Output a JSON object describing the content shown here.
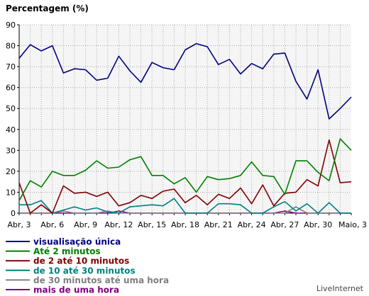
{
  "chart_data": {
    "type": "line",
    "title": "Percentagem (%)",
    "xlabel": "",
    "ylabel": "",
    "ylim": [
      0,
      90
    ],
    "yticks": [
      0,
      10,
      20,
      30,
      40,
      50,
      60,
      70,
      80,
      90
    ],
    "grid": true,
    "legend_position": "bottom-left",
    "watermark": "LiveInternet",
    "x_tick_labels": [
      "Abr, 3",
      "Abr, 6",
      "Abr, 9",
      "Abr, 12",
      "Abr, 15",
      "Abr, 18",
      "Abr, 21",
      "Abr, 24",
      "Abr, 27",
      "Abr, 30",
      "Maio, 3"
    ],
    "x": [
      "Abr, 3",
      "Abr, 4",
      "Abr, 5",
      "Abr, 6",
      "Abr, 7",
      "Abr, 8",
      "Abr, 9",
      "Abr, 10",
      "Abr, 11",
      "Abr, 12",
      "Abr, 13",
      "Abr, 14",
      "Abr, 15",
      "Abr, 16",
      "Abr, 17",
      "Abr, 18",
      "Abr, 19",
      "Abr, 20",
      "Abr, 21",
      "Abr, 22",
      "Abr, 23",
      "Abr, 24",
      "Abr, 25",
      "Abr, 26",
      "Abr, 27",
      "Abr, 28",
      "Abr, 29",
      "Abr, 30",
      "Maio, 1",
      "Maio, 2",
      "Maio, 3"
    ],
    "series": [
      {
        "name": "visualisação única",
        "color": "#000080",
        "values": [
          74,
          80.5,
          77.5,
          80,
          67,
          69,
          68.5,
          63.5,
          64.5,
          75,
          68,
          62.5,
          72,
          69.5,
          68.5,
          78,
          81,
          79.5,
          71,
          73.5,
          66.5,
          71.5,
          69,
          76,
          76.5,
          63,
          54.5,
          68.5,
          45,
          50,
          55.5
        ]
      },
      {
        "name": "Até 2 minutos",
        "color": "#008000",
        "values": [
          6,
          15.5,
          12.5,
          20,
          18,
          18,
          20.5,
          25,
          21.5,
          22,
          25.5,
          27,
          18,
          18,
          14,
          17,
          10,
          17.5,
          16,
          16.5,
          18,
          24.5,
          18,
          17.5,
          9,
          25,
          25,
          19.5,
          15.5,
          35.5,
          30
        ]
      },
      {
        "name": "de 2 até 10 minutos",
        "color": "#800000",
        "values": [
          14.5,
          0,
          4,
          0,
          13,
          9.5,
          10,
          8,
          10,
          3.5,
          5,
          8.5,
          7,
          10.5,
          11.5,
          5,
          8.5,
          4,
          9,
          7,
          12,
          4.5,
          13.5,
          3.5,
          9.5,
          10,
          16,
          13,
          35,
          14.5,
          15
        ]
      },
      {
        "name": "de 10 até 30 minutos",
        "color": "#008080",
        "values": [
          4,
          4,
          6,
          0,
          1.5,
          3,
          1.5,
          2.5,
          0.5,
          0,
          3,
          3.5,
          4,
          3.5,
          7,
          0,
          0,
          0,
          4.5,
          4.5,
          4,
          0,
          0,
          3,
          5.5,
          1,
          4.5,
          0,
          5,
          0,
          0
        ]
      },
      {
        "name": "de 30 minutos até uma hora",
        "color": "#808080",
        "values": [
          0,
          0,
          0,
          0,
          1,
          0,
          0,
          0,
          1,
          0,
          0,
          0,
          0,
          0,
          0,
          0,
          0,
          0,
          0,
          0,
          0,
          0,
          0,
          0,
          0,
          3,
          0,
          0,
          0,
          0,
          0
        ]
      },
      {
        "name": "mais de uma hora",
        "color": "#800080",
        "values": [
          0,
          0,
          0,
          0,
          0,
          0,
          0,
          0,
          0,
          1,
          0,
          0,
          0,
          0,
          0,
          0,
          0,
          0,
          0,
          0,
          0,
          0,
          0,
          0,
          1,
          0,
          0,
          0,
          0,
          0,
          0
        ]
      }
    ]
  }
}
